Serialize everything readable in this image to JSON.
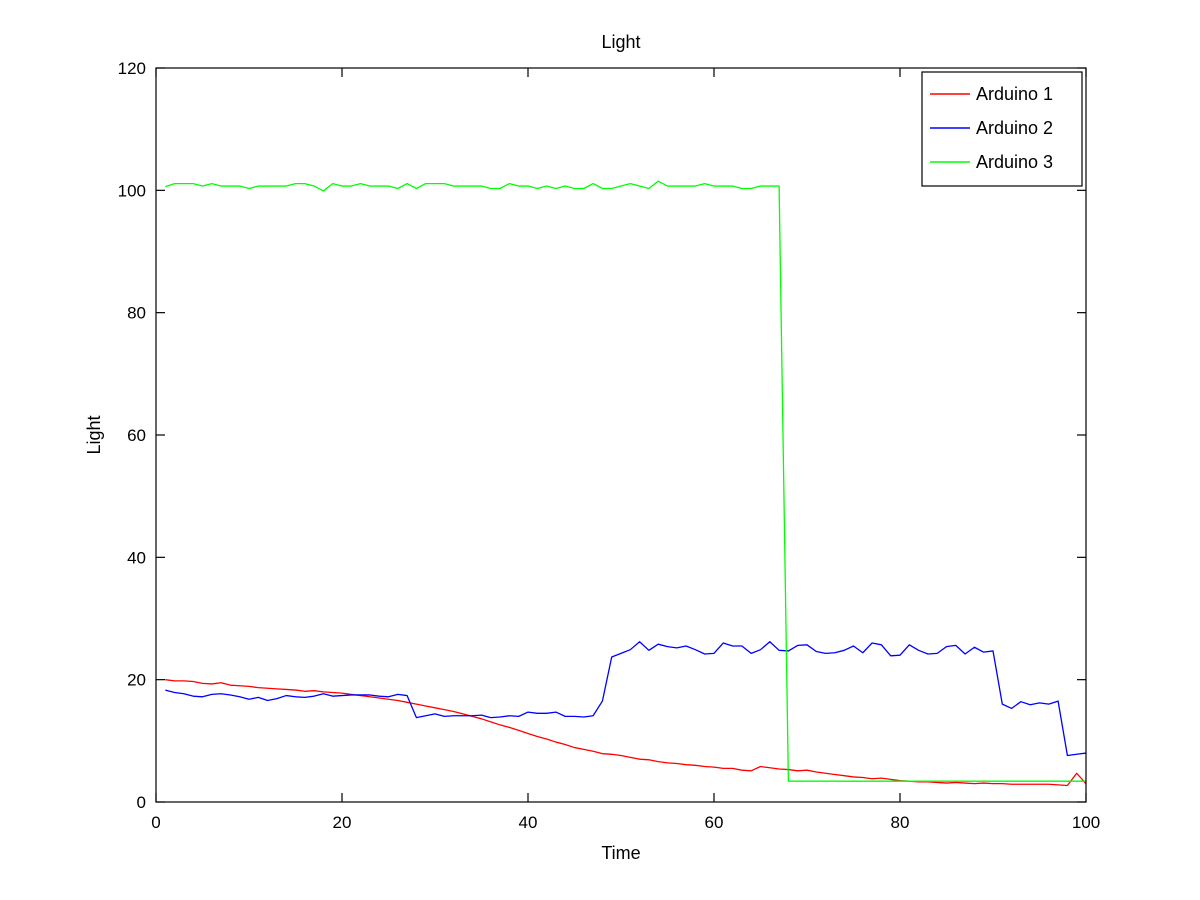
{
  "chart_data": {
    "type": "line",
    "title": "Light",
    "xlabel": "Time",
    "ylabel": "Light",
    "xlim": [
      0,
      100
    ],
    "ylim": [
      0,
      120
    ],
    "xticks": [
      0,
      20,
      40,
      60,
      80,
      100
    ],
    "yticks": [
      0,
      20,
      40,
      60,
      80,
      100,
      120
    ],
    "grid": false,
    "legend_position": "top-right",
    "series": [
      {
        "name": "Arduino 1",
        "color": "#ff0000",
        "x": [
          1,
          2,
          3,
          4,
          5,
          6,
          7,
          8,
          9,
          10,
          11,
          12,
          13,
          14,
          15,
          16,
          17,
          18,
          19,
          20,
          21,
          22,
          23,
          24,
          25,
          26,
          27,
          28,
          29,
          30,
          31,
          32,
          33,
          34,
          35,
          36,
          37,
          38,
          39,
          40,
          41,
          42,
          43,
          44,
          45,
          46,
          47,
          48,
          49,
          50,
          51,
          52,
          53,
          54,
          55,
          56,
          57,
          58,
          59,
          60,
          61,
          62,
          63,
          64,
          65,
          66,
          67,
          68,
          69,
          70,
          71,
          72,
          73,
          74,
          75,
          76,
          77,
          78,
          79,
          80,
          81,
          82,
          83,
          84,
          85,
          86,
          87,
          88,
          89,
          90,
          91,
          92,
          93,
          94,
          95,
          96,
          97,
          98,
          99,
          100
        ],
        "y": [
          20.0,
          19.8,
          19.8,
          19.7,
          19.4,
          19.3,
          19.5,
          19.1,
          19.0,
          18.9,
          18.7,
          18.6,
          18.5,
          18.4,
          18.3,
          18.1,
          18.2,
          18.0,
          17.9,
          17.8,
          17.6,
          17.4,
          17.2,
          17.0,
          16.8,
          16.6,
          16.3,
          16.0,
          15.7,
          15.4,
          15.1,
          14.8,
          14.4,
          14.0,
          13.6,
          13.1,
          12.6,
          12.2,
          11.7,
          11.2,
          10.7,
          10.3,
          9.8,
          9.4,
          8.9,
          8.6,
          8.3,
          7.9,
          7.8,
          7.6,
          7.3,
          7.0,
          6.9,
          6.6,
          6.4,
          6.3,
          6.1,
          6.0,
          5.8,
          5.7,
          5.5,
          5.5,
          5.2,
          5.1,
          5.8,
          5.6,
          5.4,
          5.3,
          5.1,
          5.2,
          4.9,
          4.7,
          4.5,
          4.3,
          4.1,
          4.0,
          3.8,
          3.9,
          3.7,
          3.5,
          3.4,
          3.3,
          3.3,
          3.2,
          3.1,
          3.2,
          3.1,
          3.0,
          3.1,
          3.0,
          3.0,
          2.9,
          2.9,
          2.9,
          2.9,
          2.9,
          2.8,
          2.7,
          4.7,
          3.0
        ]
      },
      {
        "name": "Arduino 2",
        "color": "#0000ff",
        "x": [
          1,
          2,
          3,
          4,
          5,
          6,
          7,
          8,
          9,
          10,
          11,
          12,
          13,
          14,
          15,
          16,
          17,
          18,
          19,
          20,
          21,
          22,
          23,
          24,
          25,
          26,
          27,
          28,
          29,
          30,
          31,
          32,
          33,
          34,
          35,
          36,
          37,
          38,
          39,
          40,
          41,
          42,
          43,
          44,
          45,
          46,
          47,
          48,
          49,
          50,
          51,
          52,
          53,
          54,
          55,
          56,
          57,
          58,
          59,
          60,
          61,
          62,
          63,
          64,
          65,
          66,
          67,
          68,
          69,
          70,
          71,
          72,
          73,
          74,
          75,
          76,
          77,
          78,
          79,
          80,
          81,
          82,
          83,
          84,
          85,
          86,
          87,
          88,
          89,
          90,
          91,
          92,
          93,
          94,
          95,
          96,
          97,
          98,
          99,
          100
        ],
        "y": [
          18.3,
          17.9,
          17.7,
          17.3,
          17.2,
          17.6,
          17.7,
          17.5,
          17.2,
          16.8,
          17.1,
          16.6,
          16.9,
          17.4,
          17.2,
          17.1,
          17.3,
          17.7,
          17.3,
          17.4,
          17.5,
          17.5,
          17.5,
          17.3,
          17.2,
          17.6,
          17.4,
          13.8,
          14.1,
          14.4,
          14.0,
          14.1,
          14.1,
          14.1,
          14.2,
          13.8,
          13.9,
          14.1,
          14.0,
          14.7,
          14.5,
          14.5,
          14.7,
          14.0,
          14.0,
          13.9,
          14.1,
          16.5,
          23.7,
          24.3,
          24.9,
          26.2,
          24.8,
          25.8,
          25.4,
          25.2,
          25.5,
          24.9,
          24.2,
          24.3,
          26.0,
          25.5,
          25.5,
          24.3,
          24.9,
          26.2,
          24.8,
          24.7,
          25.6,
          25.7,
          24.6,
          24.3,
          24.4,
          24.8,
          25.5,
          24.4,
          26.0,
          25.7,
          23.9,
          24.0,
          25.7,
          24.8,
          24.2,
          24.3,
          25.4,
          25.6,
          24.2,
          25.3,
          24.5,
          24.7,
          16.0,
          15.3,
          16.4,
          15.9,
          16.2,
          16.0,
          16.5,
          7.6,
          7.8,
          8.0
        ]
      },
      {
        "name": "Arduino 3",
        "color": "#00ff00",
        "x": [
          1,
          2,
          3,
          4,
          5,
          6,
          7,
          8,
          9,
          10,
          11,
          12,
          13,
          14,
          15,
          16,
          17,
          18,
          19,
          20,
          21,
          22,
          23,
          24,
          25,
          26,
          27,
          28,
          29,
          30,
          31,
          32,
          33,
          34,
          35,
          36,
          37,
          38,
          39,
          40,
          41,
          42,
          43,
          44,
          45,
          46,
          47,
          48,
          49,
          50,
          51,
          52,
          53,
          54,
          55,
          56,
          57,
          58,
          59,
          60,
          61,
          62,
          63,
          64,
          65,
          66,
          67,
          68,
          69,
          70,
          71,
          72,
          73,
          74,
          75,
          76,
          77,
          78,
          79,
          80,
          81,
          82,
          83,
          84,
          85,
          86,
          87,
          88,
          89,
          90,
          91,
          92,
          93,
          94,
          95,
          96,
          97,
          98,
          99,
          100
        ],
        "y": [
          100.6,
          101.1,
          101.1,
          101.1,
          100.7,
          101.1,
          100.7,
          100.7,
          100.7,
          100.3,
          100.7,
          100.7,
          100.7,
          100.7,
          101.1,
          101.1,
          100.7,
          99.9,
          101.1,
          100.7,
          100.7,
          101.1,
          100.7,
          100.7,
          100.7,
          100.3,
          101.1,
          100.3,
          101.1,
          101.1,
          101.1,
          100.7,
          100.7,
          100.7,
          100.7,
          100.3,
          100.3,
          101.1,
          100.7,
          100.7,
          100.3,
          100.7,
          100.3,
          100.7,
          100.3,
          100.3,
          101.1,
          100.3,
          100.3,
          100.7,
          101.1,
          100.7,
          100.3,
          101.5,
          100.7,
          100.7,
          100.7,
          100.7,
          101.1,
          100.7,
          100.7,
          100.7,
          100.3,
          100.3,
          100.7,
          100.7,
          100.7,
          3.4,
          3.4,
          3.4,
          3.4,
          3.4,
          3.4,
          3.4,
          3.4,
          3.4,
          3.4,
          3.4,
          3.4,
          3.4,
          3.4,
          3.4,
          3.4,
          3.4,
          3.4,
          3.4,
          3.4,
          3.4,
          3.4,
          3.4,
          3.4,
          3.4,
          3.4,
          3.4,
          3.4,
          3.4,
          3.4,
          3.4,
          3.4,
          3.4
        ]
      }
    ]
  }
}
